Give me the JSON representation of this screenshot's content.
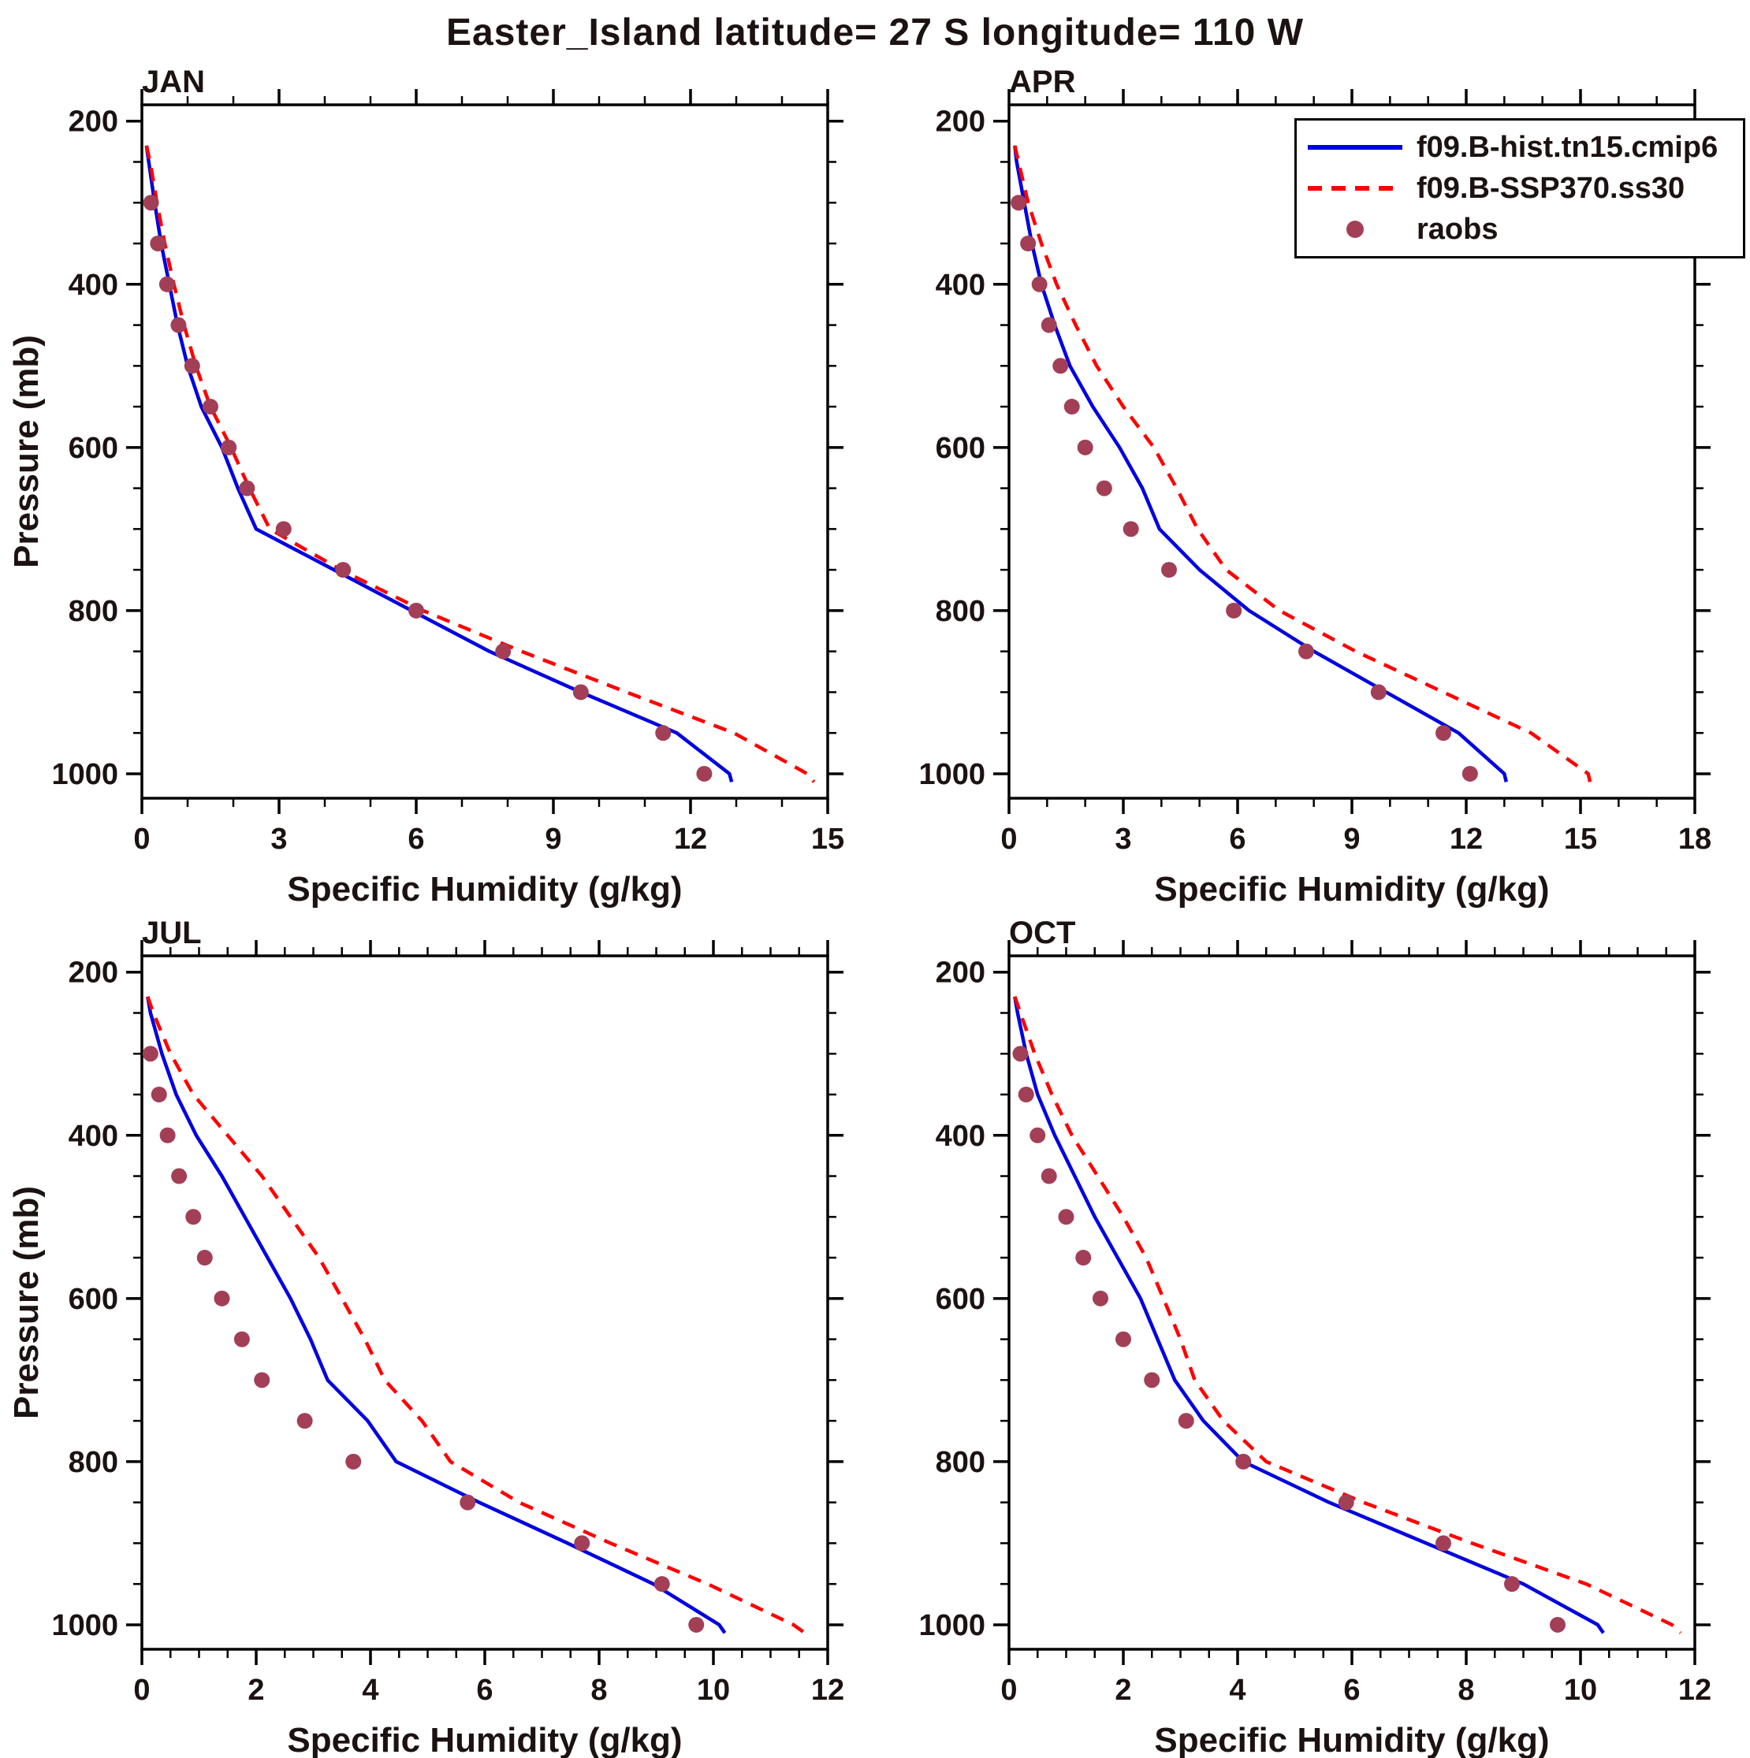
{
  "title": "Easter_Island  latitude= 27 S longitude= 110 W",
  "xlabel": "Specific Humidity (g/kg)",
  "ylabel": "Pressure (mb)",
  "colors": {
    "hist": "#0000e0",
    "ssp": "#ff0000",
    "raobs": "#a23f57",
    "text": "#1c1212",
    "axis": "#000000"
  },
  "legend": {
    "items": [
      {
        "label": "f09.B-hist.tn15.cmip6",
        "style": "solid-line"
      },
      {
        "label": "f09.B-SSP370.ss30",
        "style": "dashed-line"
      },
      {
        "label": "raobs",
        "style": "dot"
      }
    ]
  },
  "chart_data": {
    "type": "line",
    "ylim": [
      180,
      1030
    ],
    "yticks": [
      200,
      400,
      600,
      800,
      1000
    ],
    "yminor_step": 50,
    "series_names": [
      "f09.B-hist.tn15.cmip6",
      "f09.B-SSP370.ss30",
      "raobs"
    ],
    "panels": [
      {
        "label": "JAN",
        "xlim": [
          0,
          15
        ],
        "xticks": [
          0,
          3,
          6,
          9,
          12,
          15
        ],
        "xminor": 1,
        "hist": {
          "p": [
            230,
            250,
            300,
            350,
            400,
            450,
            500,
            550,
            600,
            650,
            700,
            750,
            800,
            850,
            900,
            950,
            1000,
            1010
          ],
          "q": [
            0.1,
            0.15,
            0.28,
            0.42,
            0.6,
            0.78,
            1.0,
            1.3,
            1.75,
            2.1,
            2.5,
            4.2,
            5.9,
            7.6,
            9.6,
            11.7,
            12.85,
            12.9
          ]
        },
        "ssp": {
          "p": [
            230,
            250,
            300,
            350,
            400,
            450,
            500,
            550,
            600,
            650,
            700,
            750,
            800,
            850,
            900,
            950,
            1000,
            1010
          ],
          "q": [
            0.1,
            0.18,
            0.33,
            0.5,
            0.7,
            0.92,
            1.18,
            1.5,
            1.95,
            2.35,
            2.8,
            4.35,
            6.15,
            8.3,
            10.6,
            12.95,
            14.55,
            14.7
          ]
        },
        "raobs": {
          "p": [
            300,
            350,
            400,
            450,
            500,
            550,
            600,
            650,
            700,
            750,
            800,
            850,
            900,
            950,
            1000
          ],
          "q": [
            0.2,
            0.35,
            0.55,
            0.8,
            1.1,
            1.5,
            1.9,
            2.3,
            3.1,
            4.4,
            6.0,
            7.9,
            9.6,
            11.4,
            12.3
          ]
        }
      },
      {
        "label": "APR",
        "xlim": [
          0,
          18
        ],
        "xticks": [
          0,
          3,
          6,
          9,
          12,
          15,
          18
        ],
        "xminor": 1,
        "hist": {
          "p": [
            230,
            250,
            300,
            350,
            400,
            450,
            500,
            550,
            600,
            650,
            700,
            750,
            800,
            850,
            900,
            950,
            1000,
            1010
          ],
          "q": [
            0.15,
            0.2,
            0.4,
            0.6,
            0.85,
            1.2,
            1.6,
            2.2,
            2.9,
            3.5,
            3.95,
            5.0,
            6.3,
            8.0,
            9.9,
            11.8,
            13.0,
            13.05
          ]
        },
        "ssp": {
          "p": [
            230,
            250,
            300,
            350,
            400,
            450,
            500,
            550,
            600,
            650,
            700,
            750,
            800,
            850,
            900,
            950,
            1000,
            1010
          ],
          "q": [
            0.15,
            0.25,
            0.5,
            0.85,
            1.25,
            1.75,
            2.3,
            3.0,
            3.8,
            4.4,
            4.95,
            5.7,
            7.1,
            9.1,
            11.4,
            13.7,
            15.2,
            15.25
          ]
        },
        "raobs": {
          "p": [
            300,
            350,
            400,
            450,
            500,
            550,
            600,
            650,
            700,
            750,
            800,
            850,
            900,
            950,
            1000
          ],
          "q": [
            0.25,
            0.5,
            0.8,
            1.05,
            1.35,
            1.65,
            2.0,
            2.5,
            3.2,
            4.2,
            5.9,
            7.8,
            9.7,
            11.4,
            12.1
          ]
        }
      },
      {
        "label": "JUL",
        "xlim": [
          0,
          12
        ],
        "xticks": [
          0,
          2,
          4,
          6,
          8,
          10,
          12
        ],
        "xminor": 0.5,
        "hist": {
          "p": [
            230,
            250,
            300,
            350,
            400,
            450,
            500,
            550,
            600,
            650,
            700,
            750,
            800,
            850,
            900,
            950,
            1000,
            1010
          ],
          "q": [
            0.1,
            0.15,
            0.35,
            0.6,
            0.95,
            1.4,
            1.8,
            2.2,
            2.6,
            2.95,
            3.25,
            3.95,
            4.45,
            5.9,
            7.45,
            8.95,
            10.1,
            10.2
          ]
        },
        "ssp": {
          "p": [
            230,
            250,
            300,
            350,
            400,
            450,
            500,
            550,
            600,
            650,
            700,
            750,
            800,
            850,
            900,
            950,
            1000,
            1010
          ],
          "q": [
            0.1,
            0.2,
            0.5,
            0.9,
            1.5,
            2.1,
            2.6,
            3.1,
            3.5,
            3.9,
            4.25,
            4.9,
            5.4,
            6.6,
            8.2,
            9.9,
            11.4,
            11.6
          ]
        },
        "raobs": {
          "p": [
            300,
            350,
            400,
            450,
            500,
            550,
            600,
            650,
            700,
            750,
            800,
            850,
            900,
            950,
            1000
          ],
          "q": [
            0.15,
            0.3,
            0.45,
            0.65,
            0.9,
            1.1,
            1.4,
            1.75,
            2.1,
            2.85,
            3.7,
            5.7,
            7.7,
            9.1,
            9.7
          ]
        }
      },
      {
        "label": "OCT",
        "xlim": [
          0,
          12
        ],
        "xticks": [
          0,
          2,
          4,
          6,
          8,
          10,
          12
        ],
        "xminor": 0.5,
        "hist": {
          "p": [
            230,
            250,
            300,
            350,
            400,
            450,
            500,
            550,
            600,
            650,
            700,
            750,
            800,
            850,
            900,
            950,
            1000,
            1010
          ],
          "q": [
            0.1,
            0.15,
            0.3,
            0.5,
            0.8,
            1.15,
            1.5,
            1.9,
            2.3,
            2.6,
            2.9,
            3.4,
            4.1,
            5.6,
            7.3,
            9.0,
            10.3,
            10.4
          ]
        },
        "ssp": {
          "p": [
            230,
            250,
            300,
            350,
            400,
            450,
            500,
            550,
            600,
            650,
            700,
            750,
            800,
            850,
            900,
            950,
            1000,
            1010
          ],
          "q": [
            0.1,
            0.2,
            0.45,
            0.75,
            1.1,
            1.55,
            2.0,
            2.4,
            2.7,
            3.0,
            3.25,
            3.75,
            4.5,
            6.2,
            8.1,
            10.1,
            11.6,
            11.75
          ]
        },
        "raobs": {
          "p": [
            300,
            350,
            400,
            450,
            500,
            550,
            600,
            650,
            700,
            750,
            800,
            850,
            900,
            950,
            1000
          ],
          "q": [
            0.2,
            0.3,
            0.5,
            0.7,
            1.0,
            1.3,
            1.6,
            2.0,
            2.5,
            3.1,
            4.1,
            5.9,
            7.6,
            8.8,
            9.6
          ]
        }
      }
    ]
  }
}
